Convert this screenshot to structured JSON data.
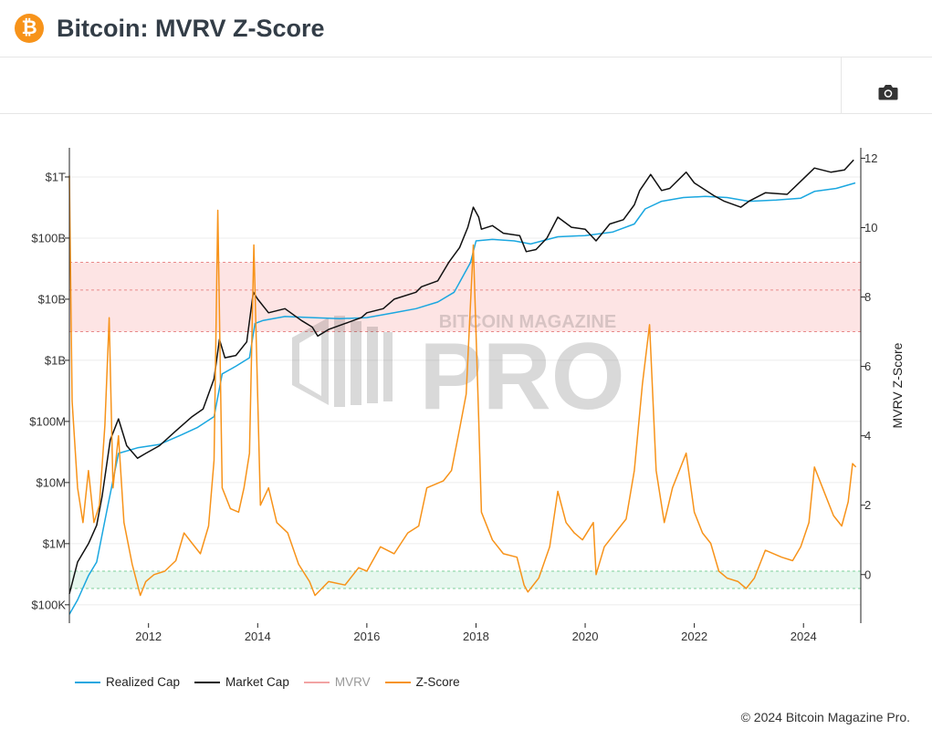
{
  "header": {
    "title": "Bitcoin: MVRV Z-Score",
    "logo_glyph": "₿"
  },
  "toolbar": {
    "camera_icon": "camera-icon"
  },
  "watermark": {
    "small": "BITCOIN MAGAZINE",
    "big": "PRO"
  },
  "copyright": "© 2024 Bitcoin Magazine Pro.",
  "chart_data": {
    "type": "line",
    "title": "Bitcoin: MVRV Z-Score",
    "x_range": [
      2010.55,
      2025.05
    ],
    "x_ticks": [
      {
        "value": 2012,
        "label": "2012"
      },
      {
        "value": 2014,
        "label": "2014"
      },
      {
        "value": 2016,
        "label": "2016"
      },
      {
        "value": 2018,
        "label": "2018"
      },
      {
        "value": 2020,
        "label": "2020"
      },
      {
        "value": 2022,
        "label": "2022"
      },
      {
        "value": 2024,
        "label": "2024"
      }
    ],
    "y_left": {
      "scale": "log",
      "range": [
        50000.0,
        3000000000000.0
      ],
      "ticks": [
        {
          "value": 100000.0,
          "label": "$100K"
        },
        {
          "value": 1000000.0,
          "label": "$1M"
        },
        {
          "value": 10000000.0,
          "label": "$10M"
        },
        {
          "value": 100000000.0,
          "label": "$100M"
        },
        {
          "value": 1000000000.0,
          "label": "$1B"
        },
        {
          "value": 10000000000.0,
          "label": "$10B"
        },
        {
          "value": 100000000000.0,
          "label": "$100B"
        },
        {
          "value": 1000000000000.0,
          "label": "$1T"
        }
      ]
    },
    "y_right": {
      "label": "MVRV Z-Score",
      "range": [
        -1.4,
        12.3
      ],
      "ticks": [
        {
          "value": 0,
          "label": "0"
        },
        {
          "value": 2,
          "label": "2"
        },
        {
          "value": 4,
          "label": "4"
        },
        {
          "value": 6,
          "label": "6"
        },
        {
          "value": 8,
          "label": "8"
        },
        {
          "value": 10,
          "label": "10"
        },
        {
          "value": 12,
          "label": "12"
        }
      ]
    },
    "bands": [
      {
        "name": "overvalued-band",
        "from": 7,
        "to": 9,
        "mid": 8.2,
        "fill": "#fde4e4",
        "stroke": "#e88a8a"
      },
      {
        "name": "undervalued-band",
        "from": -0.4,
        "to": 0.1,
        "fill": "#e6f7ee",
        "stroke": "#7fcf9b"
      }
    ],
    "series": [
      {
        "name": "Market Cap",
        "color": "#111111",
        "axis": "left",
        "points": [
          [
            2010.55,
            150000.0
          ],
          [
            2010.7,
            500000.0
          ],
          [
            2010.9,
            1000000.0
          ],
          [
            2011.05,
            2000000.0
          ],
          [
            2011.15,
            6000000.0
          ],
          [
            2011.3,
            50000000.0
          ],
          [
            2011.45,
            110000000.0
          ],
          [
            2011.6,
            40000000.0
          ],
          [
            2011.8,
            25000000.0
          ],
          [
            2011.95,
            30000000.0
          ],
          [
            2012.2,
            40000000.0
          ],
          [
            2012.5,
            70000000.0
          ],
          [
            2012.8,
            120000000.0
          ],
          [
            2013.0,
            160000000.0
          ],
          [
            2013.2,
            500000000.0
          ],
          [
            2013.3,
            2200000000.0
          ],
          [
            2013.4,
            1100000000.0
          ],
          [
            2013.6,
            1200000000.0
          ],
          [
            2013.8,
            2000000000.0
          ],
          [
            2013.92,
            13000000000.0
          ],
          [
            2014.0,
            10000000000.0
          ],
          [
            2014.2,
            6000000000.0
          ],
          [
            2014.5,
            7000000000.0
          ],
          [
            2014.8,
            4500000000.0
          ],
          [
            2015.0,
            3500000000.0
          ],
          [
            2015.1,
            2500000000.0
          ],
          [
            2015.3,
            3200000000.0
          ],
          [
            2015.6,
            4000000000.0
          ],
          [
            2015.9,
            5000000000.0
          ],
          [
            2016.0,
            6000000000.0
          ],
          [
            2016.3,
            7000000000.0
          ],
          [
            2016.5,
            10000000000.0
          ],
          [
            2016.9,
            13000000000.0
          ],
          [
            2017.0,
            16000000000.0
          ],
          [
            2017.3,
            20000000000.0
          ],
          [
            2017.5,
            40000000000.0
          ],
          [
            2017.7,
            70000000000.0
          ],
          [
            2017.85,
            150000000000.0
          ],
          [
            2017.95,
            320000000000.0
          ],
          [
            2018.05,
            220000000000.0
          ],
          [
            2018.1,
            140000000000.0
          ],
          [
            2018.3,
            160000000000.0
          ],
          [
            2018.5,
            120000000000.0
          ],
          [
            2018.8,
            110000000000.0
          ],
          [
            2018.92,
            60000000000.0
          ],
          [
            2019.1,
            65000000000.0
          ],
          [
            2019.3,
            100000000000.0
          ],
          [
            2019.5,
            220000000000.0
          ],
          [
            2019.75,
            150000000000.0
          ],
          [
            2020.0,
            140000000000.0
          ],
          [
            2020.2,
            90000000000.0
          ],
          [
            2020.45,
            170000000000.0
          ],
          [
            2020.7,
            200000000000.0
          ],
          [
            2020.9,
            350000000000.0
          ],
          [
            2021.0,
            600000000000.0
          ],
          [
            2021.2,
            1100000000000.0
          ],
          [
            2021.4,
            600000000000.0
          ],
          [
            2021.55,
            650000000000.0
          ],
          [
            2021.85,
            1200000000000.0
          ],
          [
            2022.0,
            800000000000.0
          ],
          [
            2022.35,
            500000000000.0
          ],
          [
            2022.55,
            400000000000.0
          ],
          [
            2022.85,
            320000000000.0
          ],
          [
            2023.0,
            400000000000.0
          ],
          [
            2023.3,
            550000000000.0
          ],
          [
            2023.7,
            520000000000.0
          ],
          [
            2023.95,
            850000000000.0
          ],
          [
            2024.2,
            1400000000000.0
          ],
          [
            2024.5,
            1200000000000.0
          ],
          [
            2024.75,
            1300000000000.0
          ],
          [
            2024.92,
            1900000000000.0
          ]
        ]
      },
      {
        "name": "Realized Cap",
        "color": "#1aa7e0",
        "axis": "left",
        "points": [
          [
            2010.55,
            70000.0
          ],
          [
            2010.7,
            120000.0
          ],
          [
            2010.9,
            300000.0
          ],
          [
            2011.05,
            500000.0
          ],
          [
            2011.25,
            4000000.0
          ],
          [
            2011.45,
            30000000.0
          ],
          [
            2011.8,
            37000000.0
          ],
          [
            2012.2,
            42000000.0
          ],
          [
            2012.6,
            60000000.0
          ],
          [
            2012.9,
            80000000.0
          ],
          [
            2013.2,
            120000000.0
          ],
          [
            2013.35,
            600000000.0
          ],
          [
            2013.6,
            800000000.0
          ],
          [
            2013.85,
            1100000000.0
          ],
          [
            2013.95,
            4000000000.0
          ],
          [
            2014.1,
            4500000000.0
          ],
          [
            2014.5,
            5200000000.0
          ],
          [
            2015.0,
            5000000000.0
          ],
          [
            2015.5,
            4800000000.0
          ],
          [
            2016.0,
            5000000000.0
          ],
          [
            2016.5,
            6000000000.0
          ],
          [
            2016.9,
            7000000000.0
          ],
          [
            2017.3,
            9000000000.0
          ],
          [
            2017.6,
            13000000000.0
          ],
          [
            2017.9,
            40000000000.0
          ],
          [
            2018.0,
            90000000000.0
          ],
          [
            2018.3,
            95000000000.0
          ],
          [
            2018.7,
            90000000000.0
          ],
          [
            2019.0,
            80000000000.0
          ],
          [
            2019.5,
            105000000000.0
          ],
          [
            2020.0,
            110000000000.0
          ],
          [
            2020.5,
            125000000000.0
          ],
          [
            2020.9,
            170000000000.0
          ],
          [
            2021.1,
            300000000000.0
          ],
          [
            2021.4,
            400000000000.0
          ],
          [
            2021.8,
            460000000000.0
          ],
          [
            2022.2,
            480000000000.0
          ],
          [
            2022.6,
            460000000000.0
          ],
          [
            2023.0,
            400000000000.0
          ],
          [
            2023.5,
            420000000000.0
          ],
          [
            2023.95,
            450000000000.0
          ],
          [
            2024.2,
            580000000000.0
          ],
          [
            2024.6,
            650000000000.0
          ],
          [
            2024.95,
            800000000000.0
          ]
        ]
      },
      {
        "name": "MVRV",
        "color": "#f2a3a3",
        "axis": "right",
        "points": []
      },
      {
        "name": "Z-Score",
        "color": "#f7931a",
        "axis": "right",
        "points": [
          [
            2010.55,
            11.5
          ],
          [
            2010.6,
            5
          ],
          [
            2010.7,
            2.5
          ],
          [
            2010.8,
            1.5
          ],
          [
            2010.9,
            3
          ],
          [
            2011.0,
            1.5
          ],
          [
            2011.1,
            2
          ],
          [
            2011.2,
            4.3
          ],
          [
            2011.28,
            7.4
          ],
          [
            2011.35,
            2.5
          ],
          [
            2011.45,
            4
          ],
          [
            2011.55,
            1.5
          ],
          [
            2011.7,
            0.3
          ],
          [
            2011.85,
            -0.6
          ],
          [
            2011.95,
            -0.2
          ],
          [
            2012.1,
            0
          ],
          [
            2012.3,
            0.1
          ],
          [
            2012.5,
            0.4
          ],
          [
            2012.65,
            1.2
          ],
          [
            2012.8,
            0.9
          ],
          [
            2012.95,
            0.6
          ],
          [
            2013.1,
            1.4
          ],
          [
            2013.2,
            3.3
          ],
          [
            2013.27,
            10.5
          ],
          [
            2013.35,
            2.5
          ],
          [
            2013.5,
            1.9
          ],
          [
            2013.65,
            1.8
          ],
          [
            2013.75,
            2.5
          ],
          [
            2013.85,
            3.5
          ],
          [
            2013.93,
            9.5
          ],
          [
            2014.05,
            2
          ],
          [
            2014.2,
            2.5
          ],
          [
            2014.35,
            1.5
          ],
          [
            2014.55,
            1.2
          ],
          [
            2014.75,
            0.3
          ],
          [
            2014.95,
            -0.2
          ],
          [
            2015.05,
            -0.6
          ],
          [
            2015.3,
            -0.2
          ],
          [
            2015.6,
            -0.3
          ],
          [
            2015.85,
            0.2
          ],
          [
            2016.0,
            0.1
          ],
          [
            2016.25,
            0.8
          ],
          [
            2016.5,
            0.6
          ],
          [
            2016.75,
            1.2
          ],
          [
            2016.95,
            1.4
          ],
          [
            2017.1,
            2.5
          ],
          [
            2017.4,
            2.7
          ],
          [
            2017.55,
            3
          ],
          [
            2017.7,
            4.2
          ],
          [
            2017.82,
            5.2
          ],
          [
            2017.95,
            9.5
          ],
          [
            2018.05,
            4.5
          ],
          [
            2018.1,
            1.8
          ],
          [
            2018.3,
            1
          ],
          [
            2018.5,
            0.6
          ],
          [
            2018.75,
            0.5
          ],
          [
            2018.88,
            -0.3
          ],
          [
            2018.95,
            -0.5
          ],
          [
            2019.15,
            -0.1
          ],
          [
            2019.35,
            0.8
          ],
          [
            2019.5,
            2.4
          ],
          [
            2019.65,
            1.5
          ],
          [
            2019.8,
            1.2
          ],
          [
            2019.95,
            1
          ],
          [
            2020.15,
            1.5
          ],
          [
            2020.2,
            0
          ],
          [
            2020.35,
            0.8
          ],
          [
            2020.55,
            1.2
          ],
          [
            2020.75,
            1.6
          ],
          [
            2020.9,
            3
          ],
          [
            2021.05,
            5.5
          ],
          [
            2021.18,
            7.2
          ],
          [
            2021.3,
            3
          ],
          [
            2021.45,
            1.5
          ],
          [
            2021.6,
            2.5
          ],
          [
            2021.85,
            3.5
          ],
          [
            2022.0,
            1.8
          ],
          [
            2022.15,
            1.2
          ],
          [
            2022.3,
            0.9
          ],
          [
            2022.45,
            0.1
          ],
          [
            2022.6,
            -0.1
          ],
          [
            2022.8,
            -0.2
          ],
          [
            2022.95,
            -0.4
          ],
          [
            2023.1,
            -0.1
          ],
          [
            2023.3,
            0.7
          ],
          [
            2023.6,
            0.5
          ],
          [
            2023.8,
            0.4
          ],
          [
            2023.95,
            0.8
          ],
          [
            2024.1,
            1.5
          ],
          [
            2024.2,
            3.1
          ],
          [
            2024.4,
            2.3
          ],
          [
            2024.55,
            1.7
          ],
          [
            2024.7,
            1.4
          ],
          [
            2024.82,
            2.1
          ],
          [
            2024.9,
            3.2
          ],
          [
            2024.96,
            3.1
          ]
        ]
      }
    ]
  }
}
